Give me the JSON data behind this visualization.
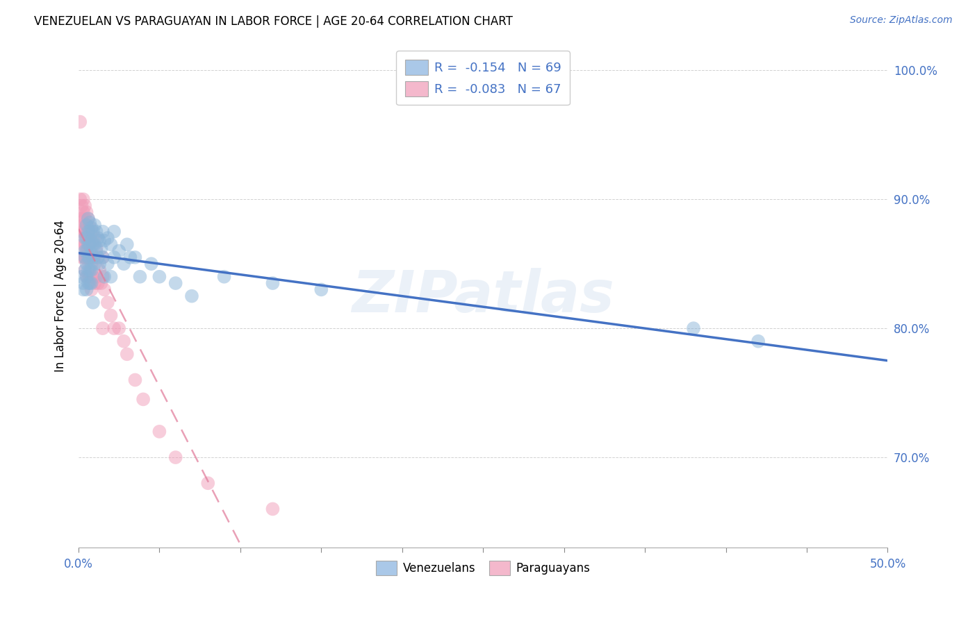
{
  "title": "VENEZUELAN VS PARAGUAYAN IN LABOR FORCE | AGE 20-64 CORRELATION CHART",
  "source": "Source: ZipAtlas.com",
  "ylabel": "In Labor Force | Age 20-64",
  "xlim": [
    0.0,
    0.5
  ],
  "ylim": [
    0.63,
    1.02
  ],
  "venezuelan_dot_color": "#8ab4d8",
  "paraguayan_dot_color": "#f09cb8",
  "trend_blue": "#4472c4",
  "trend_pink": "#e07898",
  "watermark": "ZIPatlas",
  "venezuelan_x": [
    0.002,
    0.003,
    0.003,
    0.004,
    0.004,
    0.004,
    0.004,
    0.005,
    0.005,
    0.005,
    0.005,
    0.005,
    0.005,
    0.006,
    0.006,
    0.006,
    0.006,
    0.006,
    0.006,
    0.007,
    0.007,
    0.007,
    0.007,
    0.007,
    0.007,
    0.008,
    0.008,
    0.008,
    0.008,
    0.008,
    0.009,
    0.009,
    0.009,
    0.009,
    0.01,
    0.01,
    0.01,
    0.011,
    0.011,
    0.012,
    0.012,
    0.013,
    0.013,
    0.014,
    0.015,
    0.015,
    0.016,
    0.016,
    0.018,
    0.018,
    0.02,
    0.02,
    0.022,
    0.022,
    0.025,
    0.028,
    0.03,
    0.032,
    0.035,
    0.038,
    0.045,
    0.05,
    0.06,
    0.07,
    0.09,
    0.12,
    0.15,
    0.38,
    0.42
  ],
  "venezuelan_y": [
    0.84,
    0.835,
    0.83,
    0.87,
    0.86,
    0.855,
    0.845,
    0.88,
    0.87,
    0.86,
    0.85,
    0.84,
    0.83,
    0.885,
    0.875,
    0.865,
    0.855,
    0.845,
    0.835,
    0.882,
    0.875,
    0.865,
    0.855,
    0.845,
    0.835,
    0.878,
    0.868,
    0.858,
    0.845,
    0.835,
    0.875,
    0.865,
    0.855,
    0.82,
    0.88,
    0.865,
    0.85,
    0.875,
    0.86,
    0.87,
    0.855,
    0.868,
    0.85,
    0.862,
    0.875,
    0.855,
    0.868,
    0.84,
    0.87,
    0.85,
    0.865,
    0.84,
    0.875,
    0.855,
    0.86,
    0.85,
    0.865,
    0.855,
    0.855,
    0.84,
    0.85,
    0.84,
    0.835,
    0.825,
    0.84,
    0.835,
    0.83,
    0.8,
    0.79
  ],
  "paraguayan_x": [
    0.001,
    0.001,
    0.001,
    0.001,
    0.002,
    0.002,
    0.002,
    0.002,
    0.002,
    0.003,
    0.003,
    0.003,
    0.003,
    0.003,
    0.003,
    0.004,
    0.004,
    0.004,
    0.004,
    0.004,
    0.004,
    0.005,
    0.005,
    0.005,
    0.005,
    0.005,
    0.005,
    0.006,
    0.006,
    0.006,
    0.006,
    0.006,
    0.007,
    0.007,
    0.007,
    0.007,
    0.008,
    0.008,
    0.008,
    0.008,
    0.009,
    0.009,
    0.01,
    0.01,
    0.01,
    0.011,
    0.011,
    0.012,
    0.012,
    0.013,
    0.014,
    0.015,
    0.015,
    0.015,
    0.016,
    0.018,
    0.02,
    0.022,
    0.025,
    0.028,
    0.03,
    0.035,
    0.04,
    0.05,
    0.06,
    0.08,
    0.12
  ],
  "paraguayan_y": [
    0.96,
    0.9,
    0.885,
    0.875,
    0.895,
    0.885,
    0.875,
    0.865,
    0.855,
    0.9,
    0.89,
    0.88,
    0.875,
    0.865,
    0.855,
    0.895,
    0.885,
    0.875,
    0.865,
    0.855,
    0.845,
    0.89,
    0.88,
    0.875,
    0.865,
    0.855,
    0.84,
    0.885,
    0.875,
    0.865,
    0.855,
    0.84,
    0.878,
    0.868,
    0.855,
    0.84,
    0.875,
    0.865,
    0.85,
    0.83,
    0.868,
    0.84,
    0.87,
    0.855,
    0.835,
    0.862,
    0.84,
    0.855,
    0.835,
    0.845,
    0.835,
    0.855,
    0.84,
    0.8,
    0.83,
    0.82,
    0.81,
    0.8,
    0.8,
    0.79,
    0.78,
    0.76,
    0.745,
    0.72,
    0.7,
    0.68,
    0.66
  ]
}
